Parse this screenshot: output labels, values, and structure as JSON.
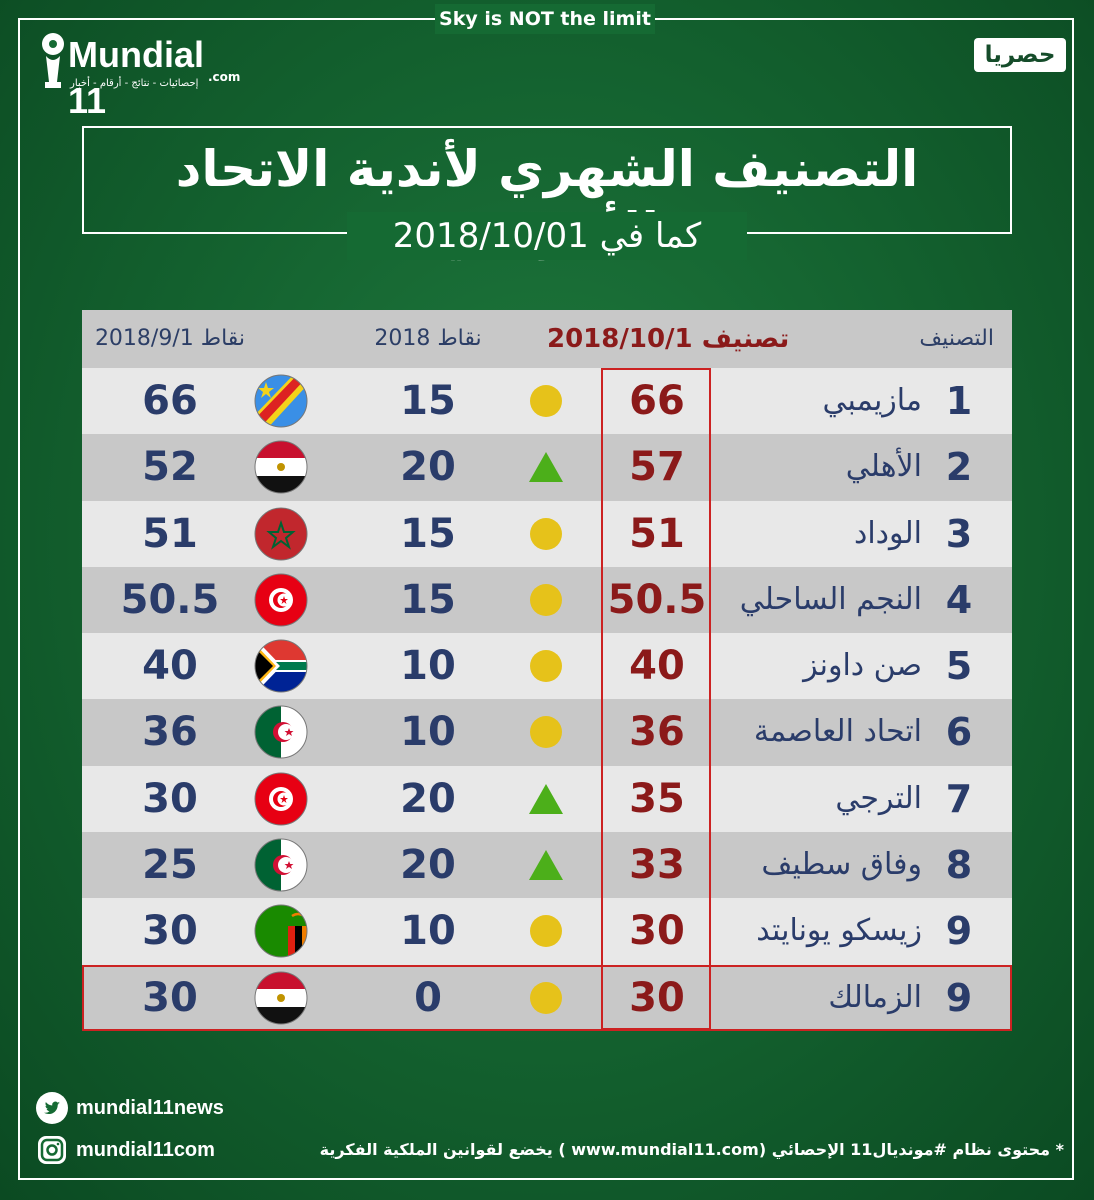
{
  "tagline": "Sky is NOT the limit",
  "logo": {
    "title": "Mundial 11",
    "dotcom": ".com",
    "sub": "إحصائيات - نتائج - أرقام - أخبار"
  },
  "badge": "حصريا",
  "title": "التصنيف الشهري لأندية الاتحاد الأفريقي",
  "subtitle": "كما في 2018/10/01",
  "table": {
    "headers": {
      "rank": "التصنيف",
      "current": "تصنيف 2018/10/1",
      "points": "نقاط 2018",
      "previous": "نقاط 2018/9/1"
    },
    "rows": [
      {
        "rank": "1",
        "name": "مازيمبي",
        "current": "66",
        "trend": "same",
        "points": "15",
        "flag": "drc-flag",
        "previous": "66"
      },
      {
        "rank": "2",
        "name": "الأهلي",
        "current": "57",
        "trend": "up",
        "points": "20",
        "flag": "egypt-flag",
        "previous": "52"
      },
      {
        "rank": "3",
        "name": "الوداد",
        "current": "51",
        "trend": "same",
        "points": "15",
        "flag": "morocco-flag",
        "previous": "51"
      },
      {
        "rank": "4",
        "name": "النجم الساحلي",
        "current": "50.5",
        "trend": "same",
        "points": "15",
        "flag": "tunisia-flag",
        "previous": "50.5"
      },
      {
        "rank": "5",
        "name": "صن داونز",
        "current": "40",
        "trend": "same",
        "points": "10",
        "flag": "south-africa-flag",
        "previous": "40"
      },
      {
        "rank": "6",
        "name": "اتحاد العاصمة",
        "current": "36",
        "trend": "same",
        "points": "10",
        "flag": "algeria-flag",
        "previous": "36"
      },
      {
        "rank": "7",
        "name": "الترجي",
        "current": "35",
        "trend": "up",
        "points": "20",
        "flag": "tunisia-flag",
        "previous": "30"
      },
      {
        "rank": "8",
        "name": "وفاق سطيف",
        "current": "33",
        "trend": "up",
        "points": "20",
        "flag": "algeria-flag",
        "previous": "25"
      },
      {
        "rank": "9",
        "name": "زيسكو يونايتد",
        "current": "30",
        "trend": "same",
        "points": "10",
        "flag": "zambia-flag",
        "previous": "30"
      },
      {
        "rank": "9",
        "name": "الزمالك",
        "current": "30",
        "trend": "same",
        "points": "0",
        "flag": "egypt-flag",
        "previous": "30"
      }
    ]
  },
  "social": {
    "twitter": "mundial11news",
    "instagram": "mundial11com"
  },
  "footer": "* محتوى نظام #مونديال11 الإحصائي (www.mundial11.com ) يخضع لقوانين الملكية الفكرية",
  "colors": {
    "background": "#13602e",
    "rank_text": "#2a3c6a",
    "current_text": "#8b1a1a",
    "highlight_border": "#cc2222",
    "up_arrow": "#4caf1a",
    "same_dot": "#e6c21a"
  }
}
